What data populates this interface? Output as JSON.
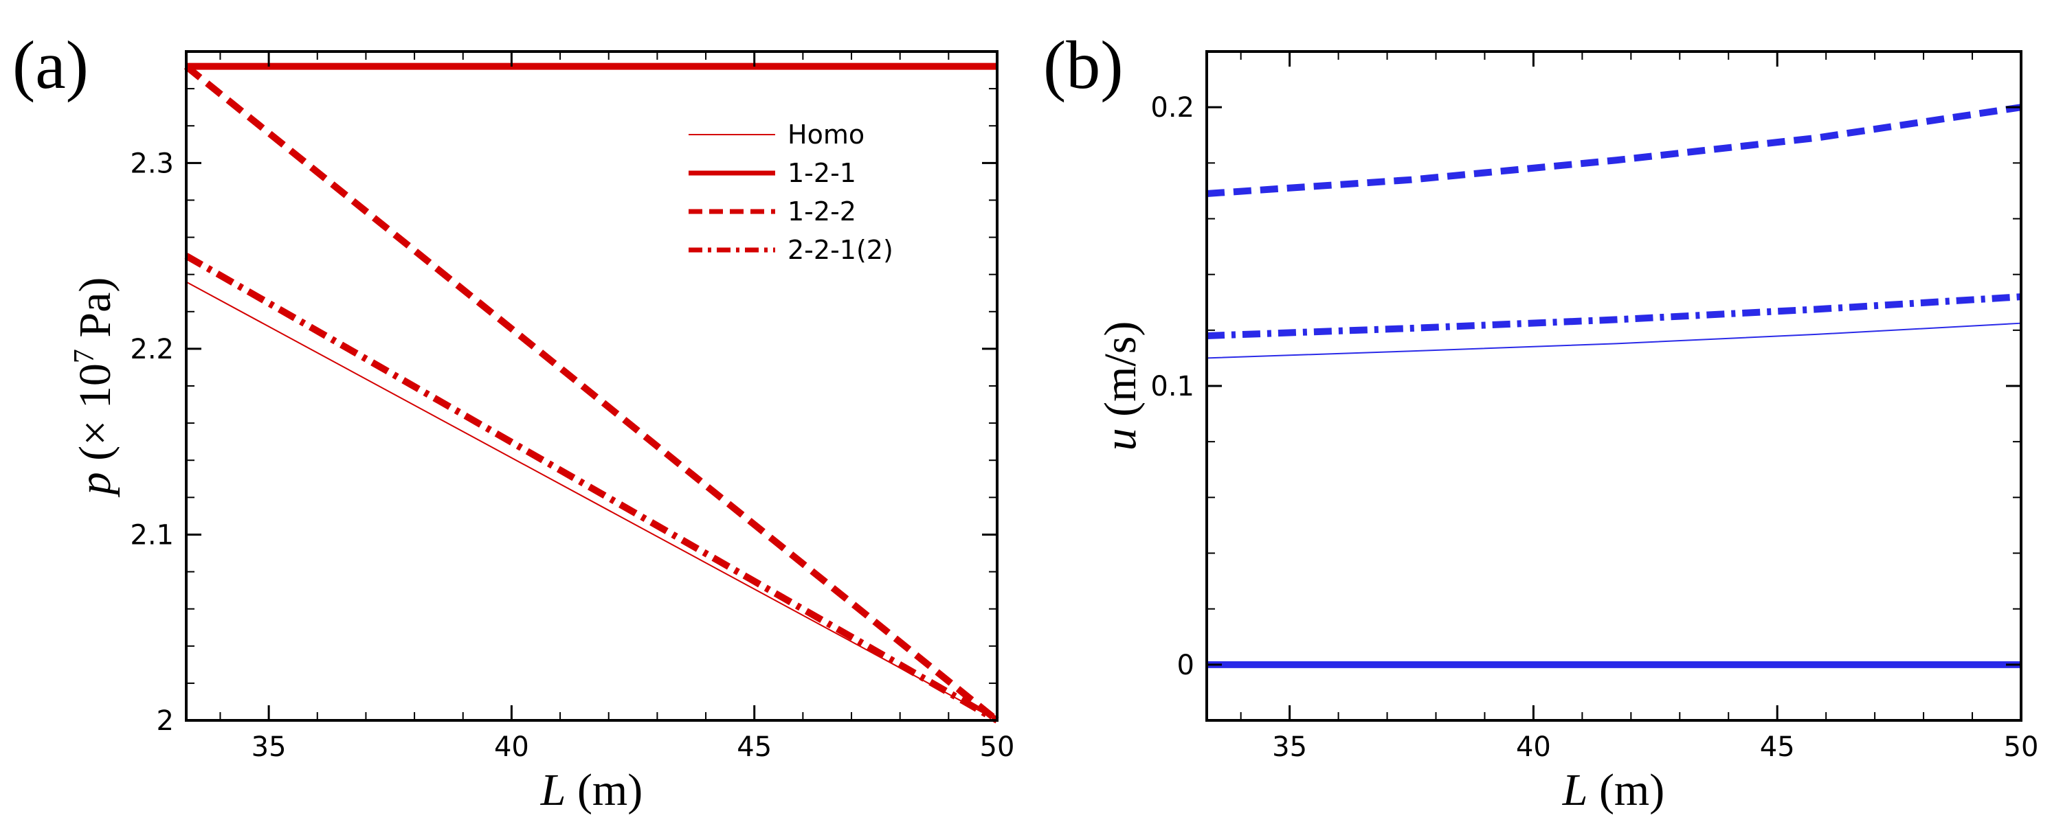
{
  "chart_data": [
    {
      "type": "line",
      "panel_label": "(a)",
      "xlabel_var": "L",
      "xlabel_unit": " (m)",
      "ylabel_var": "p",
      "ylabel_unit_prefix": " (× 10",
      "ylabel_exp": "7",
      "ylabel_unit_suffix": " Pa)",
      "xlim": [
        33.3,
        50
      ],
      "ylim": [
        2.0,
        2.36
      ],
      "xticks": [
        35,
        40,
        45,
        50
      ],
      "xtick_labels": [
        "35",
        "40",
        "45",
        "50"
      ],
      "yticks": [
        2.0,
        2.1,
        2.2,
        2.3
      ],
      "ytick_labels": [
        "2",
        "2.1",
        "2.2",
        "2.3"
      ],
      "color": "#d40000",
      "legend_position": "top-right",
      "series": [
        {
          "name": "Homo",
          "style": "thin",
          "x": [
            33.3,
            50
          ],
          "y": [
            2.236,
            2.0
          ]
        },
        {
          "name": "1-2-1",
          "style": "solid",
          "x": [
            33.3,
            50
          ],
          "y": [
            2.352,
            2.352
          ]
        },
        {
          "name": "1-2-2",
          "style": "dash",
          "x": [
            33.3,
            50
          ],
          "y": [
            2.352,
            2.0
          ]
        },
        {
          "name": "2-2-1(2)",
          "style": "dashdot",
          "x": [
            33.3,
            50
          ],
          "y": [
            2.25,
            2.0
          ]
        }
      ]
    },
    {
      "type": "line",
      "panel_label": "(b)",
      "xlabel_var": "L",
      "xlabel_unit": " (m)",
      "ylabel_var": "u",
      "ylabel_unit": " (m/s)",
      "xlim": [
        33.3,
        50
      ],
      "ylim": [
        -0.02,
        0.22
      ],
      "xticks": [
        35,
        40,
        45,
        50
      ],
      "xtick_labels": [
        "35",
        "40",
        "45",
        "50"
      ],
      "yticks": [
        0,
        0.1,
        0.2
      ],
      "ytick_labels": [
        "0",
        "0.1",
        "0.2"
      ],
      "color": "#2a2ae8",
      "series": [
        {
          "name": "Homo",
          "style": "thin",
          "x": [
            33.3,
            37.5,
            41.7,
            45.8,
            50
          ],
          "y": [
            0.11,
            0.1125,
            0.1152,
            0.1185,
            0.1225
          ]
        },
        {
          "name": "1-2-1",
          "style": "solid",
          "x": [
            33.3,
            50
          ],
          "y": [
            0.0,
            0.0
          ]
        },
        {
          "name": "1-2-2",
          "style": "dash",
          "x": [
            33.3,
            37.5,
            41.7,
            45.8,
            50
          ],
          "y": [
            0.169,
            0.174,
            0.181,
            0.189,
            0.2
          ]
        },
        {
          "name": "2-2-1(2)",
          "style": "dashdot",
          "x": [
            33.3,
            37.5,
            41.7,
            45.8,
            50
          ],
          "y": [
            0.118,
            0.1207,
            0.1238,
            0.1275,
            0.132
          ]
        }
      ]
    }
  ]
}
